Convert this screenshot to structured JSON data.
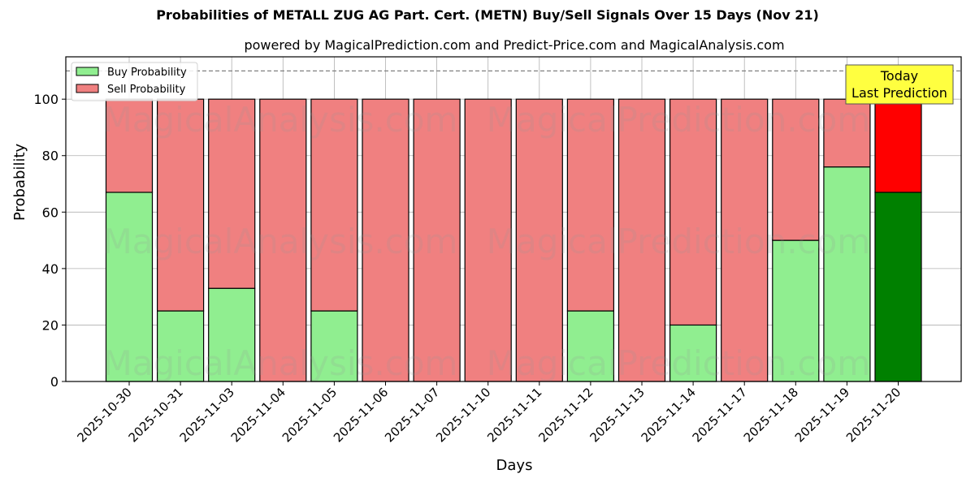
{
  "title": "Probabilities of METALL ZUG AG Part. Cert. (METN) Buy/Sell Signals Over 15 Days (Nov 21)",
  "subtitle": "powered by MagicalPrediction.com and Predict-Price.com and MagicalAnalysis.com",
  "annotation": {
    "line1": "Today",
    "line2": "Last Prediction"
  },
  "watermarks": [
    "MagicalAnalysis.com",
    "MagicalPrediction.com"
  ],
  "colors": {
    "buy": "#90ee90",
    "sell": "#f08080",
    "buy_today": "#008000",
    "sell_today": "#ff0000",
    "annotation_bg": "#ffff40",
    "grid": "#b0b0b0"
  },
  "chart_data": {
    "type": "bar",
    "stacked": true,
    "title": "Probabilities of METALL ZUG AG Part. Cert. (METN) Buy/Sell Signals Over 15 Days (Nov 21)",
    "subtitle": "powered by MagicalPrediction.com and Predict-Price.com and MagicalAnalysis.com",
    "xlabel": "Days",
    "ylabel": "Probability",
    "ylim": [
      0,
      115
    ],
    "yticks": [
      0,
      20,
      40,
      60,
      80,
      100
    ],
    "grid": true,
    "legend_position": "upper left",
    "reference_line": {
      "y": 110,
      "style": "dashed"
    },
    "categories": [
      "2025-10-30",
      "2025-10-31",
      "2025-11-03",
      "2025-11-04",
      "2025-11-05",
      "2025-11-06",
      "2025-11-07",
      "2025-11-10",
      "2025-11-11",
      "2025-11-12",
      "2025-11-13",
      "2025-11-14",
      "2025-11-17",
      "2025-11-18",
      "2025-11-19",
      "2025-11-20"
    ],
    "series": [
      {
        "name": "Buy Probability",
        "values": [
          67,
          25,
          33,
          0,
          25,
          0,
          0,
          0,
          0,
          25,
          0,
          20,
          0,
          50,
          76,
          67
        ]
      },
      {
        "name": "Sell Probability",
        "values": [
          33,
          75,
          67,
          100,
          75,
          100,
          100,
          100,
          100,
          75,
          100,
          80,
          100,
          50,
          24,
          33
        ]
      }
    ],
    "highlight": {
      "index": 15,
      "label": "Today Last Prediction"
    }
  }
}
